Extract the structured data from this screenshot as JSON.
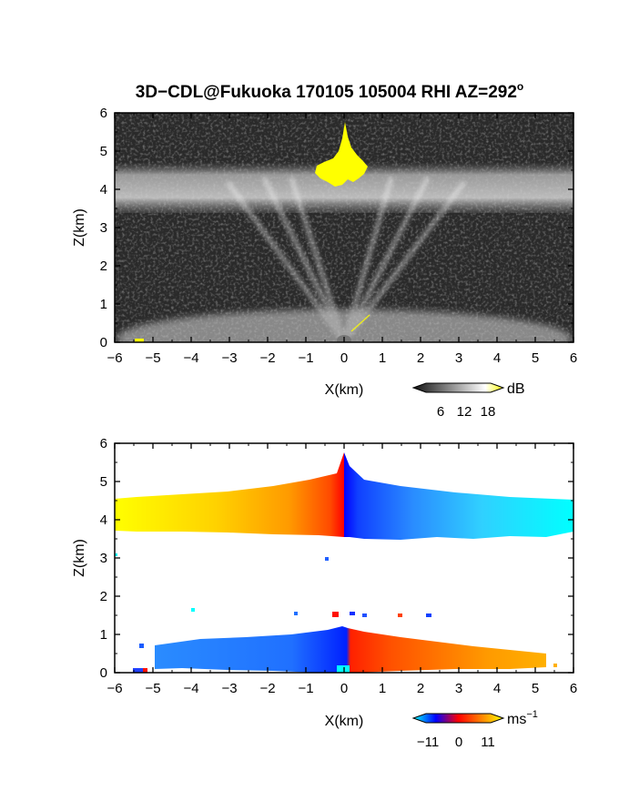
{
  "figure": {
    "title": "3D−CDL@Fukuoka 170105 105004 RHI AZ=292",
    "title_degree": "o"
  },
  "chart_data": [
    {
      "type": "heatmap",
      "name": "backscatter",
      "xlabel": "X(km)",
      "ylabel": "Z(km)",
      "xlim": [
        -6,
        6
      ],
      "ylim": [
        0,
        6
      ],
      "xticks": [
        -6,
        -5,
        -4,
        -3,
        -2,
        -1,
        0,
        1,
        2,
        3,
        4,
        5,
        6
      ],
      "yticks": [
        0,
        1,
        2,
        3,
        4,
        5,
        6
      ],
      "colorbar": {
        "unit": "dB",
        "ticks": [
          "6",
          "12",
          "18"
        ],
        "range": [
          0,
          20
        ],
        "colors": [
          "#111111",
          "#ffffff",
          "#ffff00"
        ]
      },
      "layers": [
        {
          "label": "noise background",
          "x": [
            -6,
            6
          ],
          "z": [
            0,
            6
          ],
          "level": "dark gray"
        },
        {
          "label": "cloud layer",
          "x": [
            -6,
            6
          ],
          "z": [
            3.5,
            4.6
          ],
          "value_db": 9
        },
        {
          "label": "strong echo",
          "x": [
            -0.7,
            0.6
          ],
          "z": [
            4.0,
            5.8
          ],
          "value_db": 20
        },
        {
          "label": "boundary layer",
          "x": [
            -5.5,
            5.5
          ],
          "z": [
            0,
            0.8
          ],
          "value_db": 10
        }
      ]
    },
    {
      "type": "heatmap",
      "name": "doppler velocity",
      "xlabel": "X(km)",
      "ylabel": "Z(km)",
      "xlim": [
        -6,
        6
      ],
      "ylim": [
        0,
        6
      ],
      "xticks": [
        -6,
        -5,
        -4,
        -3,
        -2,
        -1,
        0,
        1,
        2,
        3,
        4,
        5,
        6
      ],
      "yticks": [
        0,
        1,
        2,
        3,
        4,
        5,
        6
      ],
      "colorbar": {
        "unit": "ms",
        "unit_exp": "−1",
        "ticks": [
          "−11",
          "0",
          "11"
        ],
        "range": [
          -15,
          15
        ],
        "colors": [
          "#00ffff",
          "#0000ff",
          "#ff0000",
          "#ffff00"
        ]
      },
      "layers": [
        {
          "label": "upper layer west",
          "x": [
            -6,
            0
          ],
          "z": [
            3.6,
            4.6
          ],
          "velocity": [
            12,
            4
          ]
        },
        {
          "label": "upper layer east",
          "x": [
            0,
            6
          ],
          "z": [
            3.5,
            4.6
          ],
          "velocity": [
            -4,
            -13
          ]
        },
        {
          "label": "lower layer west",
          "x": [
            -5.2,
            0
          ],
          "z": [
            0,
            0.8
          ],
          "velocity": [
            -8,
            -5
          ]
        },
        {
          "label": "lower layer east",
          "x": [
            0,
            5.5
          ],
          "z": [
            0,
            0.7
          ],
          "velocity": [
            5,
            10
          ]
        }
      ]
    }
  ]
}
